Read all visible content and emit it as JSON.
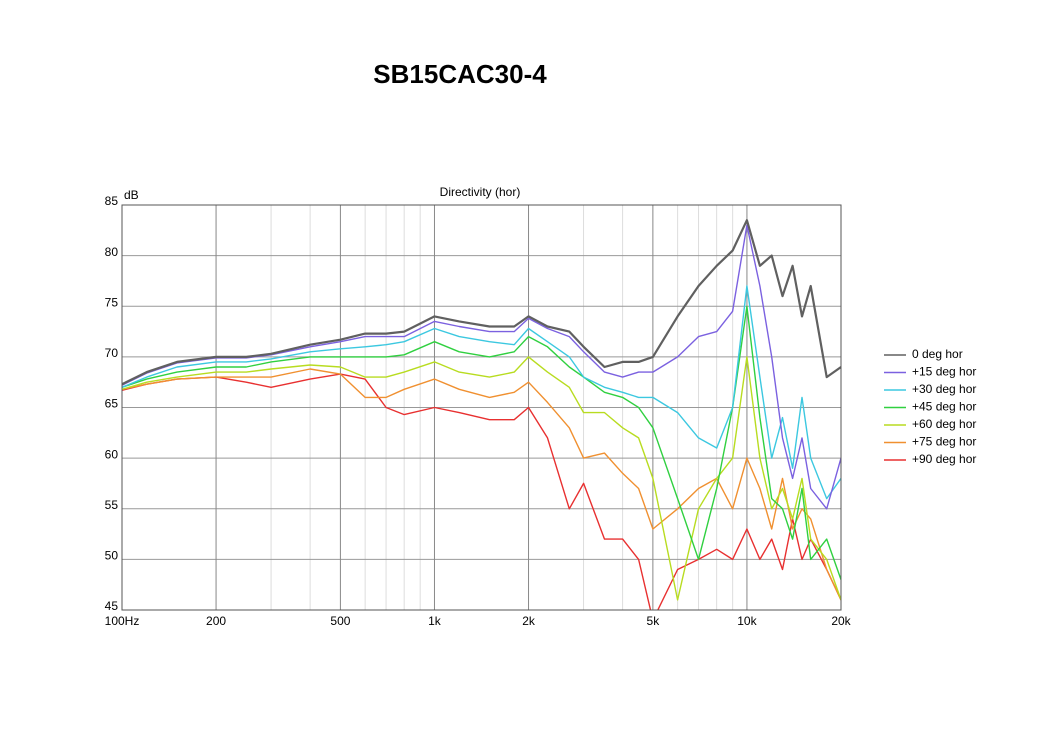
{
  "chart_data": {
    "type": "line",
    "title": "SB15CAC30-4",
    "subtitle": "Directivity (hor)",
    "y_label": "dB",
    "x_scale": "log",
    "grid": true,
    "legend": "right",
    "x": [
      100,
      120,
      150,
      200,
      250,
      300,
      400,
      500,
      600,
      700,
      800,
      1000,
      1200,
      1500,
      1800,
      2000,
      2300,
      2700,
      3000,
      3500,
      4000,
      4500,
      5000,
      6000,
      7000,
      8000,
      9000,
      10000,
      11000,
      12000,
      13000,
      14000,
      15000,
      16000,
      18000,
      20000
    ],
    "xlim": [
      100,
      20000
    ],
    "xticks": [
      {
        "value": 100,
        "label": "100Hz"
      },
      200,
      500,
      {
        "value": 1000,
        "label": "1k"
      },
      {
        "value": 2000,
        "label": "2k"
      },
      {
        "value": 5000,
        "label": "5k"
      },
      {
        "value": 10000,
        "label": "10k"
      },
      {
        "value": 20000,
        "label": "20k"
      }
    ],
    "x_minor_grid": [
      300,
      400,
      600,
      700,
      800,
      900,
      3000,
      4000,
      6000,
      7000,
      8000,
      9000
    ],
    "ylim": [
      45,
      85
    ],
    "yticks": [
      45,
      50,
      55,
      60,
      65,
      70,
      75,
      80,
      85
    ],
    "series": [
      {
        "name": "0 deg hor",
        "color": "#606060",
        "values": [
          67.3,
          68.5,
          69.5,
          70,
          70,
          70.3,
          71.2,
          71.7,
          72.3,
          72.3,
          72.5,
          74,
          73.5,
          73,
          73,
          74,
          73,
          72.5,
          71,
          69,
          69.5,
          69.5,
          70,
          74,
          77,
          79,
          80.5,
          83.5,
          79,
          80,
          76,
          79,
          74,
          77,
          68,
          69
        ]
      },
      {
        "name": "+15 deg hor",
        "color": "#7b61e0",
        "values": [
          67.2,
          68.4,
          69.4,
          69.9,
          69.9,
          70.2,
          71,
          71.5,
          72,
          72,
          72,
          73.5,
          73,
          72.5,
          72.5,
          73.8,
          72.8,
          72,
          70.5,
          68.5,
          68,
          68.5,
          68.5,
          70,
          72,
          72.5,
          74.5,
          83,
          77,
          70,
          62,
          58,
          62,
          57,
          55,
          60
        ]
      },
      {
        "name": "+30 deg hor",
        "color": "#3cc8e0",
        "values": [
          67,
          68,
          69,
          69.5,
          69.5,
          69.8,
          70.5,
          70.8,
          71,
          71.2,
          71.5,
          72.8,
          72,
          71.5,
          71.2,
          72.8,
          71.5,
          70,
          68,
          67,
          66.5,
          66,
          66,
          64.5,
          62,
          61,
          65,
          77,
          68,
          60,
          64,
          59,
          66,
          60,
          56,
          58
        ]
      },
      {
        "name": "+45 deg hor",
        "color": "#30d040",
        "values": [
          67,
          67.8,
          68.5,
          69,
          69,
          69.5,
          70,
          70,
          70,
          70,
          70.2,
          71.5,
          70.5,
          70,
          70.5,
          72,
          71,
          69,
          68,
          66.5,
          66,
          65,
          63,
          56,
          50,
          57,
          65,
          75,
          64,
          56,
          55,
          52,
          57,
          50,
          52,
          48
        ]
      },
      {
        "name": "+60 deg hor",
        "color": "#b8dc20",
        "values": [
          66.8,
          67.5,
          68,
          68.5,
          68.5,
          68.8,
          69.2,
          69,
          68,
          68,
          68.5,
          69.5,
          68.5,
          68,
          68.5,
          70,
          68.5,
          67,
          64.5,
          64.5,
          63,
          62,
          58,
          46,
          55,
          58,
          60,
          70,
          60,
          55,
          57,
          54,
          58,
          52,
          50,
          46
        ]
      },
      {
        "name": "+75 deg hor",
        "color": "#f09030",
        "values": [
          66.8,
          67.3,
          67.8,
          68,
          68,
          68,
          68.8,
          68.3,
          66,
          66,
          66.8,
          67.8,
          66.8,
          66,
          66.5,
          67.5,
          65.5,
          63,
          60,
          60.5,
          58.5,
          57,
          53,
          55,
          57,
          58,
          55,
          60,
          57,
          53,
          58,
          53,
          55,
          54,
          49,
          46
        ]
      },
      {
        "name": "+90 deg hor",
        "color": "#e83030",
        "values": [
          66.7,
          67.3,
          67.8,
          68,
          67.5,
          67,
          67.8,
          68.3,
          67.8,
          65,
          64.3,
          65,
          64.5,
          63.8,
          63.8,
          65,
          62,
          55,
          57.5,
          52,
          52,
          50,
          44,
          49,
          50,
          51,
          50,
          53,
          50,
          52,
          49,
          54,
          50,
          52,
          49,
          46
        ]
      }
    ]
  }
}
